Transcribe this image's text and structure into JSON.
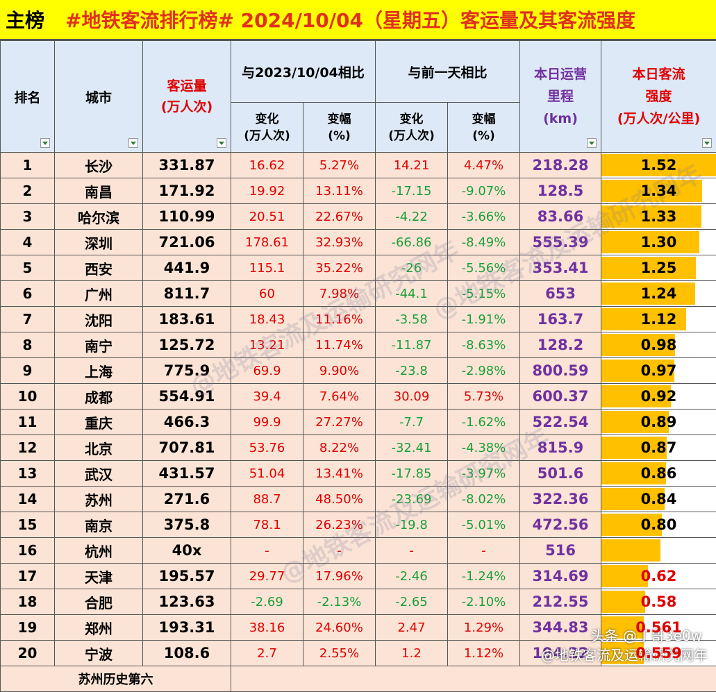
{
  "title": {
    "main": "主榜",
    "sub": "#地铁客流排行榜# 2024/10/04（星期五）客运量及其客流强度"
  },
  "headers": {
    "rank": "排名",
    "city": "城市",
    "volume": "客运量\n(万人次)",
    "yoy": "与2023/10/04相比",
    "dod": "与前一天相比",
    "change": "变化\n(万人次)",
    "pct": "变幅\n(%)",
    "mileage": "本日运营\n里程\n(km)",
    "intensity": "本日客流\n强度\n(万人次/公里)"
  },
  "rows": [
    {
      "rank": "1",
      "city": "长沙",
      "volume": "331.87",
      "yoy_change": "16.62",
      "yoy_pct": "5.27%",
      "dod_change": "14.21",
      "dod_pct": "4.47%",
      "mileage": "218.28",
      "intensity": "1.52",
      "level": 1.52
    },
    {
      "rank": "2",
      "city": "南昌",
      "volume": "171.92",
      "yoy_change": "19.92",
      "yoy_pct": "13.11%",
      "dod_change": "-17.15",
      "dod_pct": "-9.07%",
      "mileage": "128.5",
      "intensity": "1.34",
      "level": 1.34
    },
    {
      "rank": "3",
      "city": "哈尔滨",
      "volume": "110.99",
      "yoy_change": "20.51",
      "yoy_pct": "22.67%",
      "dod_change": "-4.22",
      "dod_pct": "-3.66%",
      "mileage": "83.66",
      "intensity": "1.33",
      "level": 1.33
    },
    {
      "rank": "4",
      "city": "深圳",
      "volume": "721.06",
      "yoy_change": "178.61",
      "yoy_pct": "32.93%",
      "dod_change": "-66.86",
      "dod_pct": "-8.49%",
      "mileage": "555.39",
      "intensity": "1.30",
      "level": 1.3
    },
    {
      "rank": "5",
      "city": "西安",
      "volume": "441.9",
      "yoy_change": "115.1",
      "yoy_pct": "35.22%",
      "dod_change": "-26",
      "dod_pct": "-5.56%",
      "mileage": "353.41",
      "intensity": "1.25",
      "level": 1.25
    },
    {
      "rank": "6",
      "city": "广州",
      "volume": "811.7",
      "yoy_change": "60",
      "yoy_pct": "7.98%",
      "dod_change": "-44.1",
      "dod_pct": "-5.15%",
      "mileage": "653",
      "intensity": "1.24",
      "level": 1.24
    },
    {
      "rank": "7",
      "city": "沈阳",
      "volume": "183.61",
      "yoy_change": "18.43",
      "yoy_pct": "11.16%",
      "dod_change": "-3.58",
      "dod_pct": "-1.91%",
      "mileage": "163.7",
      "intensity": "1.12",
      "level": 1.12
    },
    {
      "rank": "8",
      "city": "南宁",
      "volume": "125.72",
      "yoy_change": "13.21",
      "yoy_pct": "11.74%",
      "dod_change": "-11.87",
      "dod_pct": "-8.63%",
      "mileage": "128.2",
      "intensity": "0.98",
      "level": 0.98
    },
    {
      "rank": "9",
      "city": "上海",
      "volume": "775.9",
      "yoy_change": "69.9",
      "yoy_pct": "9.90%",
      "dod_change": "-23.8",
      "dod_pct": "-2.98%",
      "mileage": "800.59",
      "intensity": "0.97",
      "level": 0.97
    },
    {
      "rank": "10",
      "city": "成都",
      "volume": "554.91",
      "yoy_change": "39.4",
      "yoy_pct": "7.64%",
      "dod_change": "30.09",
      "dod_pct": "5.73%",
      "mileage": "600.37",
      "intensity": "0.92",
      "level": 0.92
    },
    {
      "rank": "11",
      "city": "重庆",
      "volume": "466.3",
      "yoy_change": "99.9",
      "yoy_pct": "27.27%",
      "dod_change": "-7.7",
      "dod_pct": "-1.62%",
      "mileage": "522.54",
      "intensity": "0.89",
      "level": 0.89
    },
    {
      "rank": "12",
      "city": "北京",
      "volume": "707.81",
      "yoy_change": "53.76",
      "yoy_pct": "8.22%",
      "dod_change": "-32.41",
      "dod_pct": "-4.38%",
      "mileage": "815.9",
      "intensity": "0.87",
      "level": 0.87
    },
    {
      "rank": "13",
      "city": "武汉",
      "volume": "431.57",
      "yoy_change": "51.04",
      "yoy_pct": "13.41%",
      "dod_change": "-17.85",
      "dod_pct": "-3.97%",
      "mileage": "501.6",
      "intensity": "0.86",
      "level": 0.86
    },
    {
      "rank": "14",
      "city": "苏州",
      "volume": "271.6",
      "yoy_change": "88.7",
      "yoy_pct": "48.50%",
      "dod_change": "-23.69",
      "dod_pct": "-8.02%",
      "mileage": "322.36",
      "intensity": "0.84",
      "level": 0.84
    },
    {
      "rank": "15",
      "city": "南京",
      "volume": "375.8",
      "yoy_change": "78.1",
      "yoy_pct": "26.23%",
      "dod_change": "-19.8",
      "dod_pct": "-5.01%",
      "mileage": "472.56",
      "intensity": "0.80",
      "level": 0.8
    },
    {
      "rank": "16",
      "city": "杭州",
      "volume": "40x",
      "yoy_change": "-",
      "yoy_pct": "-",
      "dod_change": "-",
      "dod_pct": "-",
      "mileage": "516",
      "intensity": "",
      "level": 0.78
    },
    {
      "rank": "17",
      "city": "天津",
      "volume": "195.57",
      "yoy_change": "29.77",
      "yoy_pct": "17.96%",
      "dod_change": "-2.46",
      "dod_pct": "-1.24%",
      "mileage": "314.69",
      "intensity": "0.62",
      "level": 0.62
    },
    {
      "rank": "18",
      "city": "合肥",
      "volume": "123.63",
      "yoy_change": "-2.69",
      "yoy_pct": "-2.13%",
      "dod_change": "-2.65",
      "dod_pct": "-2.10%",
      "mileage": "212.55",
      "intensity": "0.58",
      "level": 0.58
    },
    {
      "rank": "19",
      "city": "郑州",
      "volume": "193.31",
      "yoy_change": "38.16",
      "yoy_pct": "24.60%",
      "dod_change": "2.47",
      "dod_pct": "1.29%",
      "mileage": "344.83",
      "intensity": "0.561",
      "level": 0.561
    },
    {
      "rank": "20",
      "city": "宁波",
      "volume": "108.6",
      "yoy_change": "2.7",
      "yoy_pct": "2.55%",
      "dod_change": "1.2",
      "dod_pct": "1.12%",
      "mileage": "194.22",
      "intensity": "0.559",
      "level": 0.559
    }
  ],
  "footer_note": "苏州历史第六",
  "watermark": "@地铁客流及运输研究网年",
  "credit_1": "头条 @丁哥3e0w",
  "credit_2": "@地铁客流及运输研究网年",
  "colors": {
    "bar": "#ffc000",
    "row_bg": "#fbe4d5",
    "header_bg": "#dde9f7",
    "title_bg": "#ffff00"
  }
}
